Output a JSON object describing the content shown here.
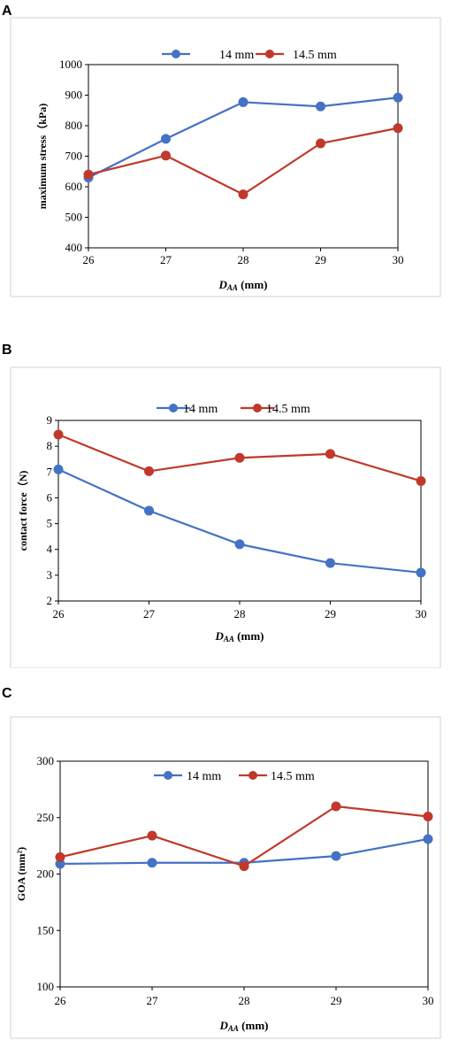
{
  "panels": [
    {
      "letter": "A"
    },
    {
      "letter": "B"
    },
    {
      "letter": "C"
    }
  ],
  "chart_data": [
    {
      "type": "line",
      "title": "",
      "categories": [
        26,
        27,
        28,
        29,
        30
      ],
      "series": [
        {
          "name": "14 mm",
          "color": "#4472C4",
          "values": [
            630,
            757,
            877,
            863,
            892
          ]
        },
        {
          "name": "14.5 mm",
          "color": "#C0392B",
          "values": [
            640,
            702,
            575,
            742,
            792
          ]
        }
      ],
      "ylabel": "maximum stress（kPa)",
      "xlabel_main": "D",
      "xlabel_sub": "AA",
      "xlabel_unit": " (mm)",
      "ylim": [
        400,
        1000
      ],
      "yticks": [
        400,
        500,
        600,
        700,
        800,
        900,
        1000
      ],
      "legend": "top-center",
      "grid": false
    },
    {
      "type": "line",
      "title": "",
      "categories": [
        26,
        27,
        28,
        29,
        30
      ],
      "series": [
        {
          "name": "14 mm",
          "color": "#4472C4",
          "values": [
            7.1,
            5.5,
            4.2,
            3.47,
            3.1
          ]
        },
        {
          "name": "14.5 mm",
          "color": "#C0392B",
          "values": [
            8.45,
            7.03,
            7.55,
            7.7,
            6.65
          ]
        }
      ],
      "ylabel": "contact force（N)",
      "xlabel_main": "D",
      "xlabel_sub": "AA",
      "xlabel_unit": " (mm)",
      "ylim": [
        2,
        9
      ],
      "yticks": [
        2,
        3,
        4,
        5,
        6,
        7,
        8,
        9
      ],
      "legend": "top-center",
      "grid": false
    },
    {
      "type": "line",
      "title": "",
      "categories": [
        26,
        27,
        28,
        29,
        30
      ],
      "series": [
        {
          "name": "14 mm",
          "color": "#4472C4",
          "values": [
            209,
            210,
            210,
            216,
            231
          ]
        },
        {
          "name": "14.5 mm",
          "color": "#C0392B",
          "values": [
            215,
            234,
            207,
            260,
            251
          ]
        }
      ],
      "ylabel": "GOA (mm²)",
      "xlabel_main": "D",
      "xlabel_sub": "AA",
      "xlabel_unit": " (mm)",
      "ylim": [
        100,
        300
      ],
      "yticks": [
        100,
        150,
        200,
        250,
        300
      ],
      "legend": "top-center",
      "grid": false
    }
  ]
}
